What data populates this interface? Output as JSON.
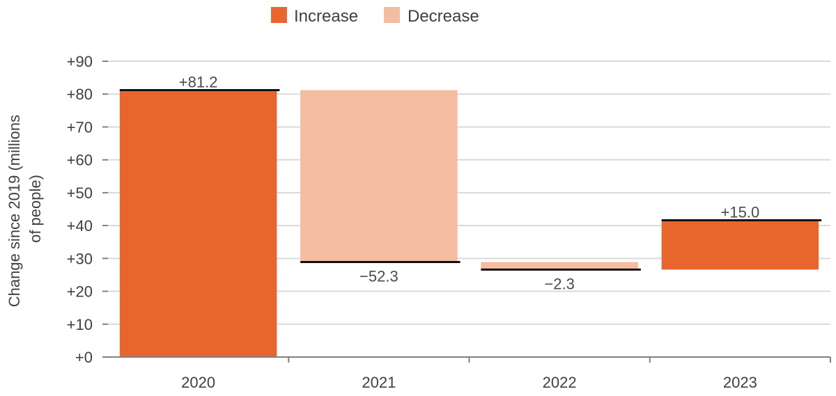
{
  "chart_data": {
    "type": "bar",
    "subtype": "waterfall",
    "categories": [
      "2020",
      "2021",
      "2022",
      "2023"
    ],
    "values": [
      81.2,
      -52.3,
      -2.3,
      15.0
    ],
    "data_labels": [
      "+81.2",
      "−52.3",
      "−2.3",
      "+15.0"
    ],
    "ylabel_lines": [
      "Change since 2019 (millions",
      "of people)"
    ],
    "ylim": [
      0,
      90
    ],
    "yticks": [
      0,
      10,
      20,
      30,
      40,
      50,
      60,
      70,
      80,
      90
    ],
    "ytick_labels": [
      "+0",
      "+10",
      "+20",
      "+30",
      "+40",
      "+50",
      "+60",
      "+70",
      "+80",
      "+90"
    ],
    "grid": true,
    "legend": {
      "position": "top",
      "items": [
        {
          "label": "Increase",
          "color": "#e8662e"
        },
        {
          "label": "Decrease",
          "color": "#f4bca0"
        }
      ]
    },
    "colors": {
      "increase": "#e8662e",
      "decrease": "#f4bca0",
      "level_line": "#111111",
      "grid": "#d9d9d9",
      "axis": "#808080"
    }
  }
}
